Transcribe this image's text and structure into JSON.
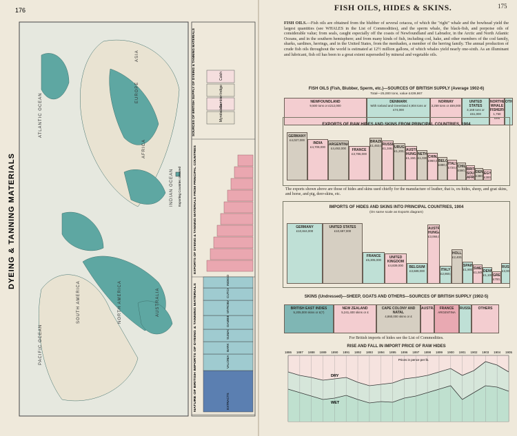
{
  "left_page": {
    "page_number": "176",
    "title": "DYEING & TANNING MATERIALS",
    "map_labels": [
      "NORTH AMERICA",
      "SOUTH AMERICA",
      "EUROPE",
      "AFRICA",
      "ASIA",
      "AUSTRALIA",
      "PACIFIC OCEAN",
      "ATLANTIC OCEAN",
      "INDIAN OCEAN"
    ],
    "legend": "Exporting Countries coloured",
    "panels": [
      "SOURCES OF BRITISH SUPPLY OF DYEING & TANNING MATERIALS",
      "EXPORTS OF DYEING & TANNING MATERIALS FROM PRINCIPAL COUNTRIES",
      "NATURE OF BRITISH IMPORTS OF DYEING & TANNING MATERIALS"
    ],
    "supply_labels": [
      "Cutch",
      "Indigo",
      "Gambier",
      "Myrobalans"
    ],
    "nature_items": [
      "EXTRACTS",
      "VALONIA",
      "BARK",
      "SUMACH",
      "GAMBIER",
      "MYROBALANS",
      "CUTCH",
      "INDIGO"
    ]
  },
  "right_page": {
    "page_number": "175",
    "title": "FISH OILS, HIDES & SKINS.",
    "intro_lead": "FISH OILS.",
    "intro": "—Fish oils are obtained from the blubber of several cetacea, of which the \"right\" whale and the bowhead yield the largest quantities (see WHALES in the List of Commodities), and the sperm whale, the black-fish, and porpoise oils of considerable value; from seals, caught especially off the coasts of Newfoundland and Labrador, in the Arctic and North Atlantic Oceans, and in the southern hemisphere; and from many kinds of fish, including cod, hake, and other members of the cod family, sharks, sardines, herrings, and in the United States, from the menhaden, a member of the herring family. The annual production of crude fish oils throughout the world is estimated at 12½ million gallons, of which whales yield nearly one-sixth. As an illuminant and lubricant, fish oil has been to a great extent superseded by mineral and vegetable oils.",
    "fish_oils": {
      "title": "FISH OILS (Fish, Blubber, Sperm, etc.)—SOURCES OF BRITISH SUPPLY (Average 1902-6)",
      "total": "Total—25,000 tons, value £439,867",
      "blocks": [
        {
          "name": "NEWFOUNDLAND",
          "value": "9,500 tons or £212,000"
        },
        {
          "name": "DENMARK",
          "value": "With Iceland and Greenland 4,904 tons or £74,000"
        },
        {
          "name": "NORWAY",
          "value": "3,259 tons or £59,000"
        },
        {
          "name": "UNITED STATES",
          "value": "3,168 tons or £61,000"
        },
        {
          "name": "NORTHERN WHALE FISHERY",
          "value": "1,750 tons"
        },
        {
          "name": "OTHER",
          "value": ""
        }
      ]
    },
    "exports": {
      "title": "EXPORTS OF RAW HIDES AND SKINS FROM PRINCIPAL COUNTRIES, 1904",
      "blocks": [
        {
          "name": "GERMANY",
          "value": "£4,027,000"
        },
        {
          "name": "INDIA",
          "value": "£4,709,000"
        },
        {
          "name": "ARGENTINA",
          "value": "£4,492,000"
        },
        {
          "name": "FRANCE",
          "value": "£3,786,000"
        },
        {
          "name": "BRAZIL",
          "value": "£1,453,000"
        },
        {
          "name": "RUSSIA",
          "value": "£1,346,000"
        },
        {
          "name": "URUGUAY",
          "value": "£1,200,000"
        },
        {
          "name": "AUSTRIA-HUNGARY",
          "value": "£1,150,000"
        },
        {
          "name": "NETHERLANDS",
          "value": "£1,030,000"
        },
        {
          "name": "CHINA",
          "value": "£960,000"
        },
        {
          "name": "BELGIUM",
          "value": "£880,000"
        },
        {
          "name": "ITALY",
          "value": "£720,000"
        },
        {
          "name": "CHILE",
          "value": "£560,000"
        },
        {
          "name": "BRITISH SOUTH AFRICA",
          "value": "£470,000"
        },
        {
          "name": "DENMARK",
          "value": "£380,000"
        },
        {
          "name": "EGYPT",
          "value": "£300,000"
        }
      ],
      "note": "The exports shown above are those of hides and skins used chiefly for the manufacture of leather, that is, ox-hides, sheep, and goat skins, and horse, and pig, deer-skins, etc."
    },
    "imports": {
      "title": "IMPORTS OF HIDES AND SKINS INTO PRINCIPAL COUNTRIES, 1904",
      "subtitle": "(On same scale as Exports diagram)",
      "blocks": [
        {
          "name": "GERMANY",
          "value": "£10,844,000"
        },
        {
          "name": "UNITED STATES",
          "value": "£10,697,000"
        },
        {
          "name": "FRANCE",
          "value": "£5,305,000"
        },
        {
          "name": "UNITED KINGDOM",
          "value": "£4,839,000"
        },
        {
          "name": "BELGIUM",
          "value": "£3,689,000"
        },
        {
          "name": "AUSTRIA-HUNGARY",
          "value": "£3,066,000"
        },
        {
          "name": "ITALY",
          "value": "£2,860,000"
        },
        {
          "name": "HOLLAND",
          "value": "£2,400,000"
        },
        {
          "name": "SPAIN",
          "value": "£1,900,000"
        },
        {
          "name": "SWEDEN",
          "value": "£1,500,000"
        },
        {
          "name": "DENMARK",
          "value": "£1,100,000"
        },
        {
          "name": "GREECE",
          "value": "£700,000"
        },
        {
          "name": "RUSSIA",
          "value": "£3,000,000"
        }
      ]
    },
    "skins": {
      "title": "SKINS (Undressed)—SHEEP, GOATS AND OTHERS—SOURCES OF BRITISH SUPPLY (1902-5)",
      "blocks": [
        {
          "name": "BRITISH EAST INDIES",
          "value": "5,205,000 skins or £(?)"
        },
        {
          "name": "NEW ZEALAND",
          "value": "5,241,400 skins or £"
        },
        {
          "name": "CAPE COLONY AND NATAL",
          "value": "4,860,000 skins or £"
        },
        {
          "name": "AUSTRALIA",
          "value": ""
        },
        {
          "name": "FRANCE",
          "value": "ARGENTINA"
        },
        {
          "name": "RUSSIA",
          "value": ""
        },
        {
          "name": "OTHERS",
          "value": ""
        }
      ],
      "note": "For British imports of hides see the List of Commodities."
    },
    "price": {
      "title": "RISE AND FALL IN IMPORT PRICE OF RAW HIDES",
      "unit": "Prices in pence per lb.",
      "years": [
        "1886",
        "1887",
        "1888",
        "1889",
        "1890",
        "1891",
        "1892",
        "1893",
        "1894",
        "1895",
        "1896",
        "1897",
        "1898",
        "1899",
        "1900",
        "1901",
        "1902",
        "1903",
        "1904",
        "1905"
      ],
      "lines": [
        "DRY",
        "WET"
      ]
    }
  }
}
